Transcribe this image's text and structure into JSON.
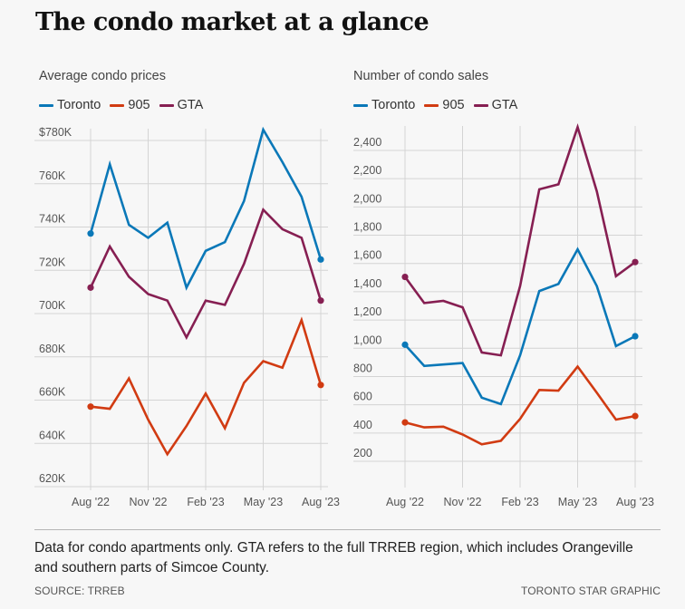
{
  "title": "The condo market at a glance",
  "colors": {
    "toronto": "#0a78b8",
    "905": "#d13b12",
    "gta": "#861f52",
    "grid": "#d4d4d4",
    "background": "#f7f7f7"
  },
  "legend": [
    {
      "key": "toronto",
      "label": "Toronto"
    },
    {
      "key": "905",
      "label": "905"
    },
    {
      "key": "gta",
      "label": "GTA"
    }
  ],
  "chart_data": [
    {
      "type": "line",
      "title": "Average condo prices",
      "xlabel": "",
      "ylabel": "",
      "x": [
        "Aug '22",
        "Sep '22",
        "Oct '22",
        "Nov '22",
        "Dec '22",
        "Jan '23",
        "Feb '23",
        "Mar '23",
        "Apr '23",
        "May '23",
        "Jun '23",
        "Jul '23",
        "Aug '23"
      ],
      "xticks": [
        "Aug '22",
        "Nov '22",
        "Feb '23",
        "May '23",
        "Aug '23"
      ],
      "yticks": [
        {
          "value": 780000,
          "label": "$780K"
        },
        {
          "value": 760000,
          "label": "760K"
        },
        {
          "value": 740000,
          "label": "740K"
        },
        {
          "value": 720000,
          "label": "720K"
        },
        {
          "value": 700000,
          "label": "700K"
        },
        {
          "value": 680000,
          "label": "680K"
        },
        {
          "value": 660000,
          "label": "660K"
        },
        {
          "value": 640000,
          "label": "640K"
        },
        {
          "value": 620000,
          "label": "620K"
        }
      ],
      "ylim": [
        620000,
        785000
      ],
      "grid": true,
      "legend_position": "top-left",
      "series": [
        {
          "key": "toronto",
          "name": "Toronto",
          "values": [
            737000,
            769000,
            741000,
            735000,
            742000,
            712000,
            729000,
            733000,
            752000,
            785000,
            770000,
            754000,
            725000
          ]
        },
        {
          "key": "905",
          "name": "905",
          "values": [
            657000,
            656000,
            670000,
            651000,
            635000,
            648000,
            663000,
            647000,
            668000,
            678000,
            675000,
            697000,
            667000
          ]
        },
        {
          "key": "gta",
          "name": "GTA",
          "values": [
            712000,
            731000,
            717000,
            709000,
            706000,
            689000,
            706000,
            704000,
            723000,
            748000,
            739000,
            735000,
            706000
          ]
        }
      ]
    },
    {
      "type": "line",
      "title": "Number of condo sales",
      "xlabel": "",
      "ylabel": "",
      "x": [
        "Aug '22",
        "Sep '22",
        "Oct '22",
        "Nov '22",
        "Dec '22",
        "Jan '23",
        "Feb '23",
        "Mar '23",
        "Apr '23",
        "May '23",
        "Jun '23",
        "Jul '23",
        "Aug '23"
      ],
      "xticks": [
        "Aug '22",
        "Nov '22",
        "Feb '23",
        "May '23",
        "Aug '23"
      ],
      "yticks": [
        {
          "value": 2400,
          "label": "2,400"
        },
        {
          "value": 2200,
          "label": "2,200"
        },
        {
          "value": 2000,
          "label": "2,000"
        },
        {
          "value": 1800,
          "label": "1,800"
        },
        {
          "value": 1600,
          "label": "1,600"
        },
        {
          "value": 1400,
          "label": "1,400"
        },
        {
          "value": 1200,
          "label": "1,200"
        },
        {
          "value": 1000,
          "label": "1,000"
        },
        {
          "value": 800,
          "label": "800"
        },
        {
          "value": 600,
          "label": "600"
        },
        {
          "value": 400,
          "label": "400"
        },
        {
          "value": 200,
          "label": "200"
        }
      ],
      "ylim": [
        0,
        2570
      ],
      "grid": true,
      "legend_position": "top-left",
      "series": [
        {
          "key": "toronto",
          "name": "Toronto",
          "values": [
            1025,
            875,
            885,
            895,
            650,
            605,
            950,
            1405,
            1455,
            1700,
            1440,
            1015,
            1085
          ]
        },
        {
          "key": "905",
          "name": "905",
          "values": [
            475,
            440,
            445,
            390,
            320,
            345,
            500,
            705,
            700,
            870,
            685,
            495,
            520
          ]
        },
        {
          "key": "gta",
          "name": "GTA",
          "values": [
            1505,
            1320,
            1335,
            1290,
            970,
            950,
            1440,
            2125,
            2160,
            2565,
            2110,
            1510,
            1610
          ]
        }
      ]
    }
  ],
  "footer": {
    "note": "Data for condo apartments only. GTA refers to the full TRREB region, which includes Orangeville and southern parts of Simcoe County.",
    "source": "SOURCE: TRREB",
    "credit": "TORONTO STAR GRAPHIC"
  }
}
